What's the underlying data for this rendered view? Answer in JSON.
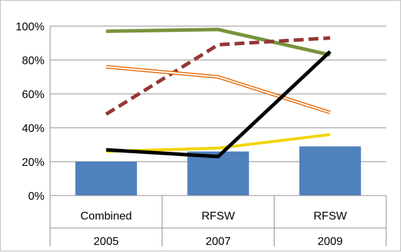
{
  "chart_data": {
    "type": "bar",
    "title": "",
    "xlabel": "",
    "ylabel": "",
    "categories": [
      {
        "line1": "Combined",
        "line2": "2005"
      },
      {
        "line1": "RFSW",
        "line2": "2007"
      },
      {
        "line1": "RFSW",
        "line2": "2009"
      }
    ],
    "y_ticks": [
      "0%",
      "20%",
      "40%",
      "60%",
      "80%",
      "100%"
    ],
    "ylim": [
      0,
      100
    ],
    "grid": true,
    "bar_series": {
      "color": "#4f81bd",
      "values": [
        20,
        26,
        29
      ]
    },
    "line_series": [
      {
        "color": "#77933c",
        "style": "solid-thick",
        "values": [
          97,
          98,
          83
        ]
      },
      {
        "color": "#953735",
        "style": "dashed",
        "values": [
          48,
          89,
          93
        ]
      },
      {
        "color": "#e46c0a",
        "style": "double",
        "values": [
          76,
          70,
          49
        ]
      },
      {
        "color": "#f2d400",
        "style": "solid",
        "values": [
          26,
          28,
          36
        ]
      },
      {
        "color": "#000000",
        "style": "solid-thick",
        "values": [
          27,
          23,
          85
        ]
      }
    ]
  }
}
